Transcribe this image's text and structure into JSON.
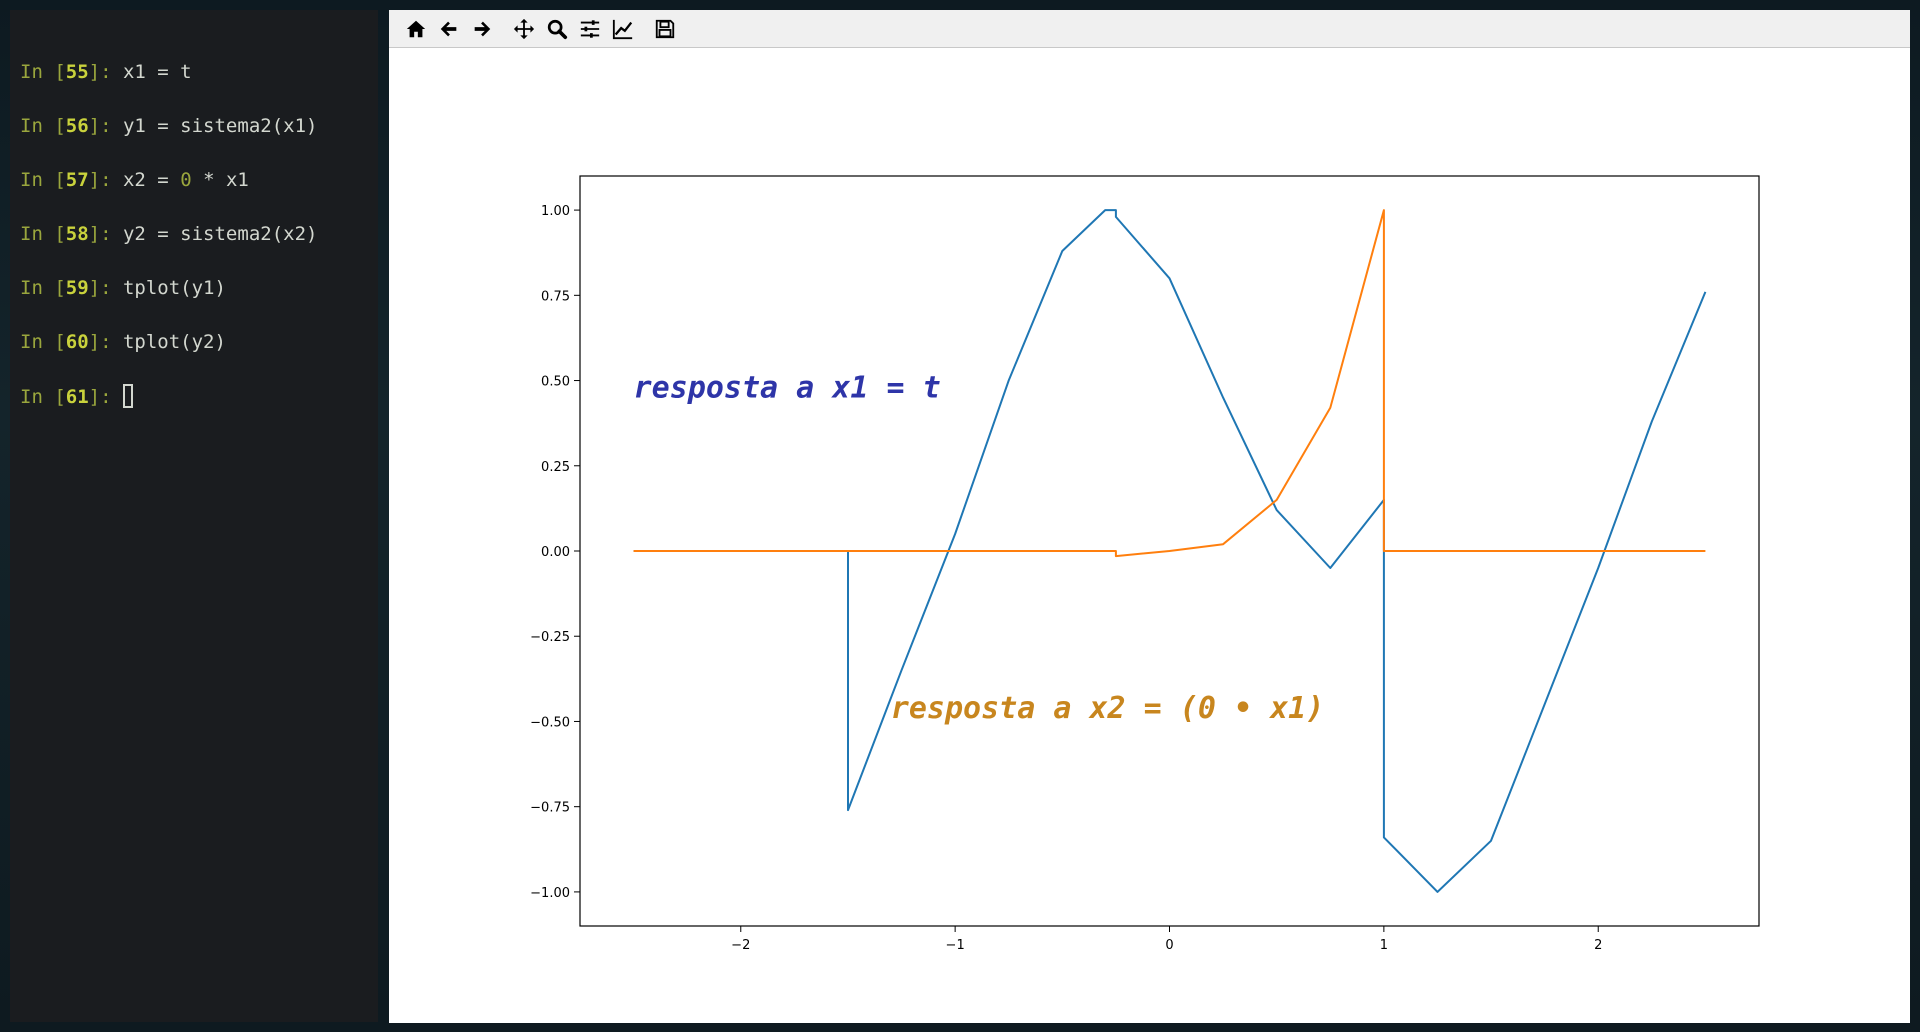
{
  "terminal": {
    "lines": [
      {
        "prompt": "In [",
        "num": "55",
        "close": "]: ",
        "code": "x1 = t"
      },
      {
        "prompt": "In [",
        "num": "56",
        "close": "]: ",
        "code": "y1 = sistema2(x1)"
      },
      {
        "prompt": "In [",
        "num": "57",
        "close": "]: ",
        "code_a": "x2 = ",
        "code_zero": "0",
        "code_b": " * x1"
      },
      {
        "prompt": "In [",
        "num": "58",
        "close": "]: ",
        "code": "y2 = sistema2(x2)"
      },
      {
        "prompt": "In [",
        "num": "59",
        "close": "]: ",
        "code": "tplot(y1)"
      },
      {
        "prompt": "In [",
        "num": "60",
        "close": "]: ",
        "code": "tplot(y2)"
      },
      {
        "prompt": "In [",
        "num": "61",
        "close": "]: ",
        "code": ""
      }
    ]
  },
  "toolbar": {
    "buttons": [
      "home-icon",
      "back-arrow-icon",
      "forward-arrow-icon",
      "pan-icon",
      "zoom-icon",
      "subplots-config-icon",
      "edit-axes-icon",
      "save-icon"
    ]
  },
  "chart_data": {
    "type": "line",
    "xlim": [
      -2.75,
      2.75
    ],
    "ylim": [
      -1.1,
      1.1
    ],
    "x_ticks": [
      -2,
      -1,
      0,
      1,
      2
    ],
    "x_tick_labels": [
      "−2",
      "−1",
      "0",
      "1",
      "2"
    ],
    "y_ticks": [
      1.0,
      0.75,
      0.5,
      0.25,
      0.0,
      -0.25,
      -0.5,
      -0.75,
      -1.0
    ],
    "y_tick_labels": [
      "1.00",
      "0.75",
      "0.50",
      "0.25",
      "0.00",
      "−0.25",
      "−0.50",
      "−0.75",
      "−1.00"
    ],
    "grid": false,
    "series": [
      {
        "color": "#1f77b4",
        "x": [
          -2.5,
          -1.5,
          -1.5,
          -1.25,
          -1.0,
          -0.75,
          -0.5,
          -0.3,
          -0.25,
          -0.25,
          0.0,
          0.25,
          0.5,
          0.75,
          1.0,
          1.0,
          1.25,
          1.5,
          1.75,
          2.0,
          2.25,
          2.5
        ],
        "y": [
          0.0,
          0.0,
          -0.76,
          -0.35,
          0.05,
          0.5,
          0.88,
          1.0,
          1.0,
          0.98,
          0.8,
          0.45,
          0.12,
          -0.05,
          0.15,
          -0.84,
          -1.0,
          -0.85,
          -0.45,
          -0.05,
          0.38,
          0.76
        ]
      },
      {
        "color": "#ff7f0e",
        "x": [
          -2.5,
          -0.25,
          -0.25,
          0.0,
          0.25,
          0.5,
          0.75,
          1.0,
          1.0,
          2.5
        ],
        "y": [
          0.0,
          0.0,
          -0.015,
          0.0,
          0.02,
          0.15,
          0.42,
          1.0,
          0.0,
          0.0
        ]
      }
    ],
    "annotations": [
      {
        "text": "resposta a x1 = t",
        "x": -2.5,
        "y": 0.45,
        "color": "#2e35a8"
      },
      {
        "text": "resposta a x2 = (0 • x1)",
        "x": -1.3,
        "y": -0.49,
        "color": "#c8861e"
      }
    ]
  }
}
